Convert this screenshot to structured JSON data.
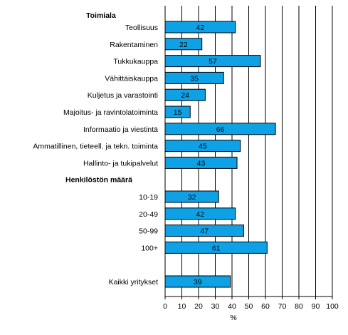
{
  "chart_data": {
    "type": "bar",
    "orientation": "horizontal",
    "xlabel": "%",
    "xlim": [
      0,
      100
    ],
    "xticks": [
      "0",
      "10",
      "20",
      "30",
      "40",
      "50",
      "60",
      "70",
      "80",
      "90",
      "100"
    ],
    "grid": "vertical",
    "bar_color": "#0FA1E6",
    "groups": [
      {
        "title": "Toimiala",
        "categories": [
          "Teollisuus",
          "Rakentaminen",
          "Tukkukauppa",
          "Vähittäiskauppa",
          "Kuljetus ja varastointi",
          "Majoitus- ja ravintolatoiminta",
          "Informaatio ja viestintä",
          "Ammatillinen, tieteell. ja tekn. toiminta",
          "Hallinto- ja tukipalvelut"
        ],
        "values": [
          42,
          22,
          57,
          35,
          24,
          15,
          66,
          45,
          43
        ]
      },
      {
        "title": "Henkilöstön määrä",
        "categories": [
          "10-19",
          "20-49",
          "50-99",
          "100+"
        ],
        "values": [
          32,
          42,
          47,
          61
        ]
      },
      {
        "title": "",
        "categories": [
          "Kaikki yritykset"
        ],
        "values": [
          39
        ]
      }
    ]
  }
}
